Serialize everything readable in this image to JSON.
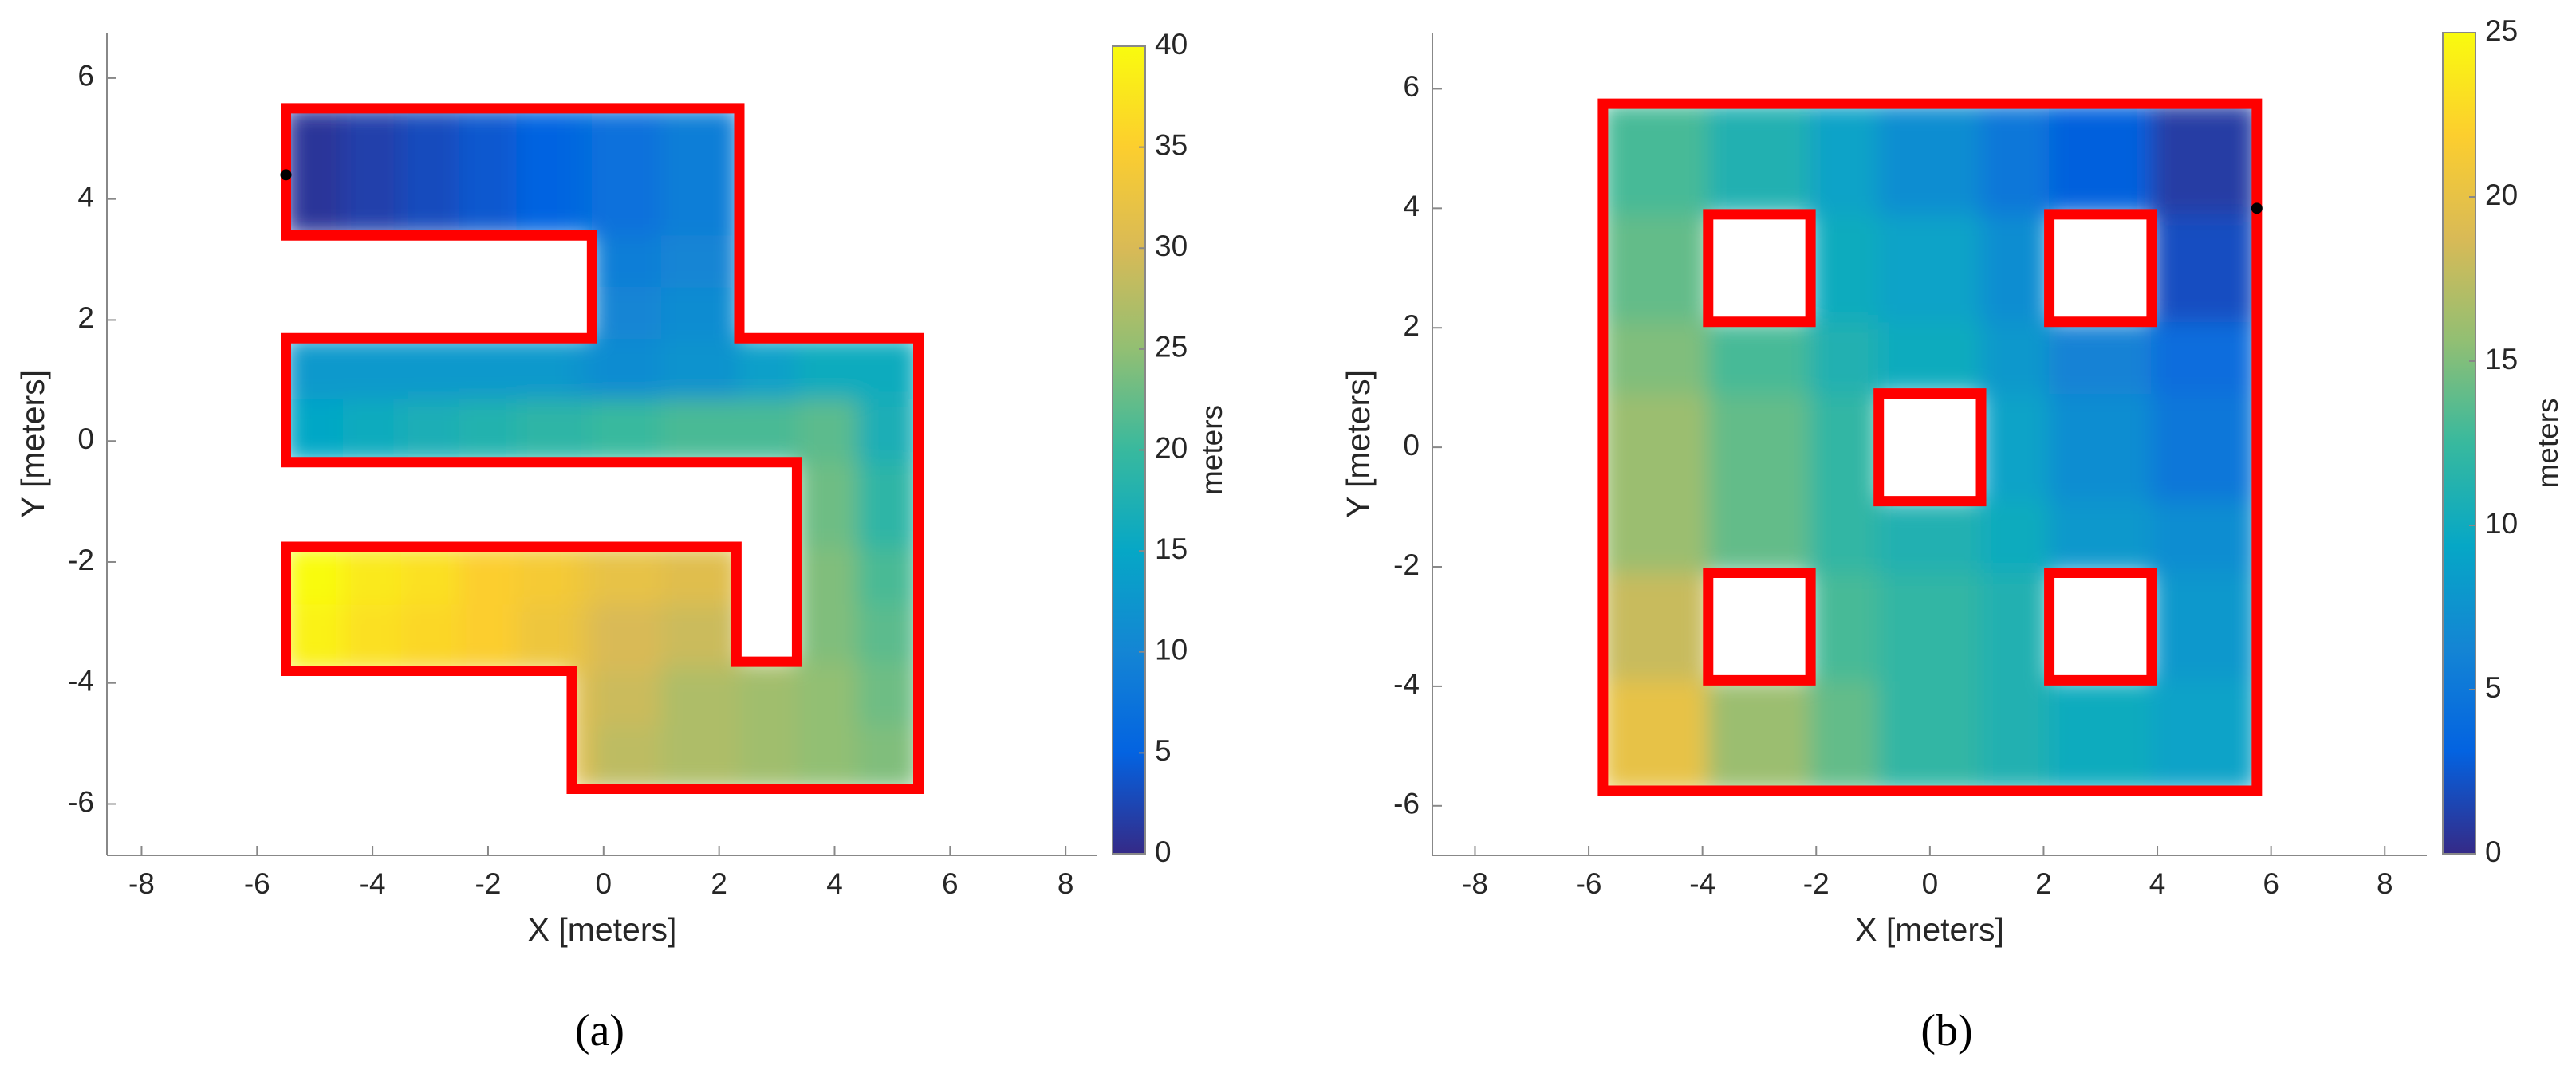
{
  "chart_data": [
    {
      "type": "heatmap",
      "caption": "(a)",
      "xlabel": "X [meters]",
      "ylabel": "Y [meters]",
      "colorbar_label": "meters",
      "xlim": [
        -8.6,
        8.55
      ],
      "ylim": [
        -6.85,
        6.75
      ],
      "xticks": [
        -8,
        -6,
        -4,
        -2,
        0,
        2,
        4,
        6,
        8
      ],
      "yticks": [
        -6,
        -4,
        -2,
        0,
        2,
        4,
        6
      ],
      "clim": [
        0,
        40
      ],
      "cticks": [
        0,
        5,
        10,
        15,
        20,
        25,
        30,
        35,
        40
      ],
      "colormap": [
        "#352a87",
        "#0363e1",
        "#1485d4",
        "#06a7c6",
        "#38b99e",
        "#92bf73",
        "#d9ba56",
        "#fcce2e",
        "#f9fb0e"
      ],
      "wall_color": "#ff0000",
      "x_edges": [
        -5.5,
        -4.5,
        -3.5,
        -2.5,
        -1.5,
        -0.55,
        -0.2,
        1,
        2.35,
        3.35,
        4.4,
        5.45
      ],
      "y_edges": [
        -5.75,
        -4.7,
        -3.8,
        -3.65,
        -2.7,
        -1.75,
        -0.35,
        0.7,
        1.7,
        2.55,
        3.4,
        4.45,
        5.5
      ],
      "values": [
        [
          null,
          null,
          null,
          null,
          null,
          31,
          28,
          27,
          26,
          25,
          24
        ],
        [
          null,
          null,
          null,
          null,
          null,
          31,
          29,
          27,
          26,
          25,
          23
        ],
        [
          38,
          37,
          35,
          34,
          33,
          32,
          30,
          28,
          27,
          25,
          23
        ],
        [
          39,
          37,
          36,
          35,
          33,
          32,
          30,
          29,
          null,
          24,
          22
        ],
        [
          40,
          38,
          37,
          35,
          34,
          33,
          32,
          31,
          null,
          24,
          21
        ],
        [
          null,
          null,
          null,
          null,
          null,
          null,
          null,
          null,
          null,
          23,
          19
        ],
        [
          15,
          16,
          17,
          18,
          19,
          19,
          20,
          21,
          21,
          22,
          17
        ],
        [
          13,
          13,
          13,
          13,
          13,
          12,
          11,
          12,
          14,
          16,
          16
        ],
        [
          null,
          null,
          null,
          null,
          null,
          null,
          10,
          11,
          null,
          null,
          null
        ],
        [
          null,
          null,
          null,
          null,
          null,
          null,
          9,
          10,
          null,
          null,
          null
        ],
        [
          1,
          2,
          3,
          4,
          5,
          6,
          7,
          9,
          null,
          null,
          null
        ],
        [
          1,
          2,
          3,
          4,
          5,
          6,
          7,
          9,
          null,
          null,
          null
        ]
      ],
      "boundary": {
        "x": [
          -5.5,
          2.35,
          2.35,
          5.45,
          5.45,
          -0.55,
          -0.55,
          -5.5,
          -5.5,
          2.3,
          2.3,
          3.35,
          3.35,
          -5.5,
          -5.5,
          -0.2,
          -0.2,
          -5.5
        ],
        "y": [
          5.5,
          5.5,
          1.7,
          1.7,
          -5.75,
          -5.75,
          -3.8,
          -3.8,
          -1.75,
          -1.75,
          -3.65,
          -3.65,
          -0.35,
          -0.35,
          1.7,
          1.7,
          3.4,
          3.4
        ]
      },
      "holes": [],
      "source": {
        "x": -5.5,
        "y": 4.4
      }
    },
    {
      "type": "heatmap",
      "caption": "(b)",
      "xlabel": "X [meters]",
      "ylabel": "Y [meters]",
      "colorbar_label": "meters",
      "xlim": [
        -8.75,
        8.74
      ],
      "ylim": [
        -6.83,
        6.94
      ],
      "xticks": [
        -8,
        -6,
        -4,
        -2,
        0,
        2,
        4,
        6,
        8
      ],
      "yticks": [
        -6,
        -4,
        -2,
        0,
        2,
        4,
        6
      ],
      "clim": [
        0,
        25
      ],
      "cticks": [
        0,
        5,
        10,
        15,
        20,
        25
      ],
      "colormap": [
        "#352a87",
        "#0363e1",
        "#1485d4",
        "#06a7c6",
        "#38b99e",
        "#92bf73",
        "#d9ba56",
        "#fcce2e",
        "#f9fb0e"
      ],
      "wall_color": "#ff0000",
      "x_edges": [
        -5.75,
        -3.9,
        -2.1,
        -0.9,
        0.9,
        2.1,
        3.9,
        5.75
      ],
      "y_edges": [
        -5.75,
        -3.9,
        -2.1,
        -0.9,
        0.9,
        2.1,
        3.9,
        5.75
      ],
      "values": [
        [
          20,
          16,
          14,
          12,
          11,
          10,
          9
        ],
        [
          18,
          null,
          13,
          12,
          11,
          null,
          8
        ],
        [
          16,
          14,
          12,
          11,
          10,
          8,
          7
        ],
        [
          16,
          14,
          12,
          null,
          9,
          7,
          5
        ],
        [
          15,
          13,
          11,
          10,
          8,
          6,
          4
        ],
        [
          14,
          null,
          10,
          9,
          7,
          null,
          2
        ],
        [
          13,
          11,
          9,
          7,
          5,
          3,
          1
        ]
      ],
      "boundary": {
        "x": [
          -5.75,
          5.75,
          5.75,
          -5.75
        ],
        "y": [
          5.75,
          5.75,
          -5.75,
          -5.75
        ]
      },
      "holes": [
        {
          "x": [
            -3.9,
            -2.1,
            -2.1,
            -3.9
          ],
          "y": [
            3.9,
            3.9,
            2.1,
            2.1
          ]
        },
        {
          "x": [
            2.1,
            3.9,
            3.9,
            2.1
          ],
          "y": [
            3.9,
            3.9,
            2.1,
            2.1
          ]
        },
        {
          "x": [
            -0.9,
            0.9,
            0.9,
            -0.9
          ],
          "y": [
            0.9,
            0.9,
            -0.9,
            -0.9
          ]
        },
        {
          "x": [
            -3.9,
            -2.1,
            -2.1,
            -3.9
          ],
          "y": [
            -2.1,
            -2.1,
            -3.9,
            -3.9
          ]
        },
        {
          "x": [
            2.1,
            3.9,
            3.9,
            2.1
          ],
          "y": [
            -2.1,
            -2.1,
            -3.9,
            -3.9
          ]
        }
      ],
      "source": {
        "x": 5.75,
        "y": 4.0
      }
    }
  ]
}
